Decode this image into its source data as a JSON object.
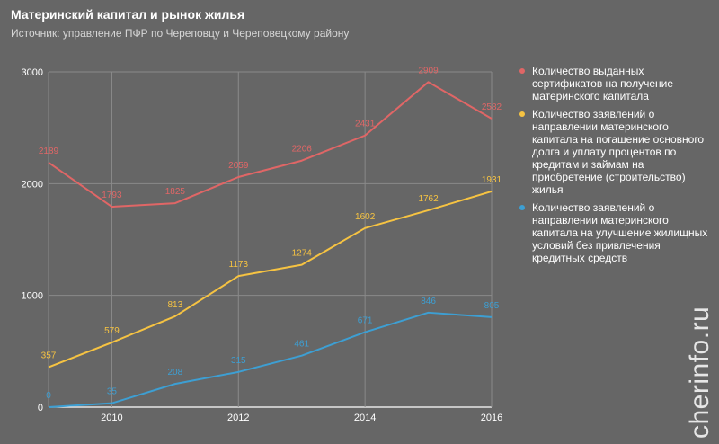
{
  "header": {
    "title": "Материнский капитал и рынок жилья",
    "subtitle": "Источник: управление ПФР по Череповцу и Череповецкому району"
  },
  "watermark": "cherinfo.ru",
  "colors": {
    "background": "#666666",
    "grid": "#8a8a8a"
  },
  "chart_data": {
    "type": "line",
    "x": [
      2009,
      2010,
      2011,
      2012,
      2013,
      2014,
      2015,
      2016
    ],
    "xticks": [
      "2010",
      "2012",
      "2014",
      "2016"
    ],
    "yticks": [
      "0",
      "1000",
      "2000",
      "3000"
    ],
    "ylim": [
      0,
      3000
    ],
    "xlim": [
      2009,
      2016
    ],
    "grid": true,
    "legend_position": "right",
    "series": [
      {
        "name": "Количество выданных сертификатов на получение материнского капитала",
        "color": "#e06666",
        "values": [
          2189,
          1793,
          1825,
          2059,
          2206,
          2431,
          2909,
          2582
        ]
      },
      {
        "name": "Количество заявлений о направлении материнского капитала на погашение основного долга и уплату процентов по кредитам и займам на приобретение (строительство) жилья",
        "color": "#f6c342",
        "values": [
          357,
          579,
          813,
          1173,
          1274,
          1602,
          1762,
          1931
        ]
      },
      {
        "name": "Количество заявлений о направлении материнского капитала на улучшение жилищных условий без привлечения кредитных средств",
        "color": "#3d9fd3",
        "values": [
          0,
          35,
          208,
          315,
          461,
          671,
          846,
          805
        ]
      }
    ]
  }
}
